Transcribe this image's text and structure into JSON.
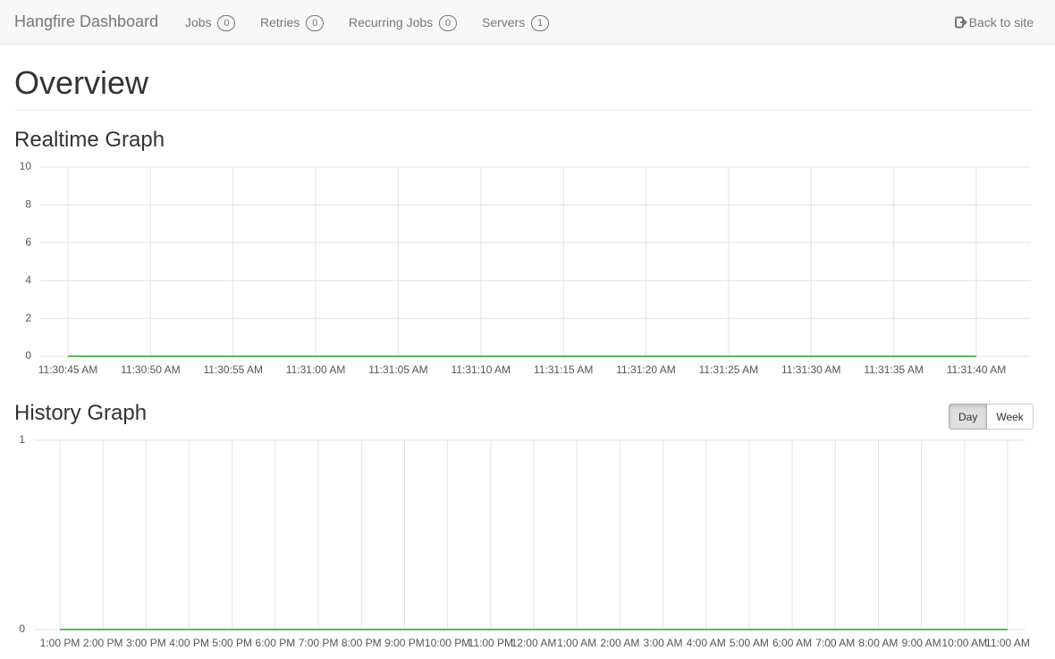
{
  "navbar": {
    "brand": "Hangfire Dashboard",
    "items": [
      {
        "label": "Jobs",
        "count": 0
      },
      {
        "label": "Retries",
        "count": 0
      },
      {
        "label": "Recurring Jobs",
        "count": 0
      },
      {
        "label": "Servers",
        "count": 1
      }
    ],
    "back": "Back to site"
  },
  "page": {
    "title": "Overview",
    "buttons": [
      "Day",
      "Week"
    ]
  },
  "chart_data": [
    {
      "type": "line",
      "title": "Realtime Graph",
      "categories": [
        "11:30:45 AM",
        "11:30:50 AM",
        "11:30:55 AM",
        "11:31:00 AM",
        "11:31:05 AM",
        "11:31:10 AM",
        "11:31:15 AM",
        "11:31:20 AM",
        "11:31:25 AM",
        "11:31:30 AM",
        "11:31:35 AM",
        "11:31:40 AM"
      ],
      "values": [
        0,
        0,
        0,
        0,
        0,
        0,
        0,
        0,
        0,
        0,
        0,
        0
      ],
      "color": "#5cb85c",
      "ylim": [
        0,
        10
      ],
      "yticks": [
        0,
        2,
        4,
        6,
        8,
        10
      ],
      "grid": true
    },
    {
      "type": "line",
      "title": "History Graph",
      "categories": [
        "1:00 PM",
        "2:00 PM",
        "3:00 PM",
        "4:00 PM",
        "5:00 PM",
        "6:00 PM",
        "7:00 PM",
        "8:00 PM",
        "9:00 PM",
        "10:00 PM",
        "11:00 PM",
        "12:00 AM",
        "1:00 AM",
        "2:00 AM",
        "3:00 AM",
        "4:00 AM",
        "5:00 AM",
        "6:00 AM",
        "7:00 AM",
        "8:00 AM",
        "9:00 AM",
        "10:00 AM",
        "11:00 AM"
      ],
      "values": [
        0,
        0,
        0,
        0,
        0,
        0,
        0,
        0,
        0,
        0,
        0,
        0,
        0,
        0,
        0,
        0,
        0,
        0,
        0,
        0,
        0,
        0,
        0
      ],
      "color": "#5cb85c",
      "ylim": [
        0,
        1
      ],
      "yticks": [
        0,
        1
      ],
      "grid": true
    }
  ]
}
